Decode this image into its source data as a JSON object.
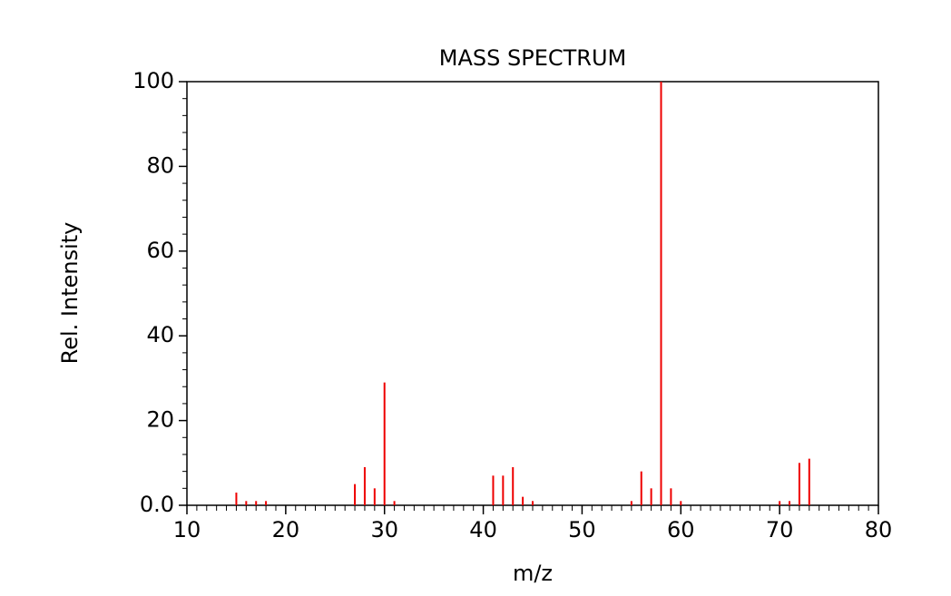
{
  "chart_data": {
    "type": "stem",
    "title": "MASS SPECTRUM",
    "x_label": "m/z",
    "y_label": "Rel. Intensity",
    "color": "#ee0000",
    "x": [
      15,
      16,
      17,
      18,
      27,
      28,
      29,
      30,
      31,
      41,
      42,
      43,
      44,
      45,
      55,
      56,
      57,
      58,
      59,
      60,
      70,
      71,
      72,
      73
    ],
    "values": [
      3,
      1,
      1,
      1,
      5,
      9,
      4,
      29,
      1,
      7,
      7,
      9,
      2,
      1,
      1,
      8,
      4,
      100,
      4,
      1,
      1,
      1,
      10,
      11
    ],
    "xlim": [
      10,
      80
    ],
    "xticks": [
      10,
      20,
      30,
      40,
      50,
      60,
      70,
      80
    ],
    "ylim": [
      0,
      100
    ],
    "yticks": [
      {
        "value": 0,
        "label": "0.0"
      },
      20,
      40,
      60,
      80,
      100
    ]
  }
}
